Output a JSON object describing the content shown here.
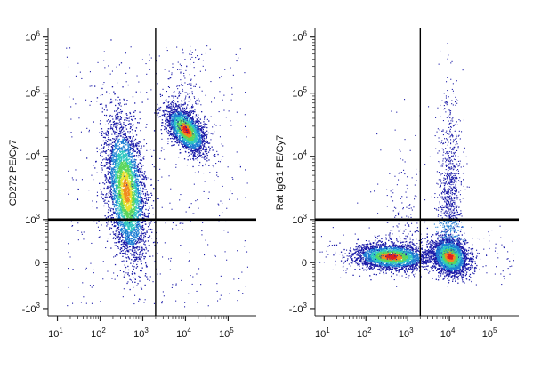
{
  "chart_data": [
    {
      "type": "scatter",
      "subtype": "flow-cytometry-density-dot-plot",
      "title": "",
      "xlabel": "",
      "ylabel": "CD272 PE/Cy7",
      "x_scale": "biexponential",
      "y_scale": "biexponential",
      "x_ticks": [
        "10^1",
        "10^2",
        "10^3",
        "10^4",
        "10^5"
      ],
      "y_ticks": [
        "-10^3",
        "0",
        "10^3",
        "10^4",
        "10^5",
        "10^6"
      ],
      "gate": {
        "x": 2000,
        "y": 1000
      },
      "populations": [
        {
          "x": 400,
          "y": 3000,
          "relative_size": 0.64
        },
        {
          "x": 10000,
          "y": 30000,
          "relative_size": 0.36
        }
      ],
      "density_colors": [
        "#1a1aa8",
        "#1f7fd4",
        "#2fc8c0",
        "#5cd65c",
        "#e8e030",
        "#f08a20",
        "#e02020"
      ]
    },
    {
      "type": "scatter",
      "subtype": "flow-cytometry-density-dot-plot",
      "title": "",
      "xlabel": "",
      "ylabel": "Rat IgG1 PE/Cy7",
      "x_scale": "biexponential",
      "y_scale": "biexponential",
      "x_ticks": [
        "10^1",
        "10^2",
        "10^3",
        "10^4",
        "10^5"
      ],
      "y_ticks": [
        "-10^3",
        "0",
        "10^3",
        "10^4",
        "10^5",
        "10^6"
      ],
      "gate": {
        "x": 2000,
        "y": 1000
      },
      "populations": [
        {
          "x": 400,
          "y": 150,
          "relative_size": 0.5
        },
        {
          "x": 10000,
          "y": 150,
          "relative_size": 0.5
        }
      ],
      "density_colors": [
        "#1a1aa8",
        "#1f7fd4",
        "#2fc8c0",
        "#5cd65c",
        "#e8e030",
        "#f08a20",
        "#e02020"
      ]
    }
  ]
}
